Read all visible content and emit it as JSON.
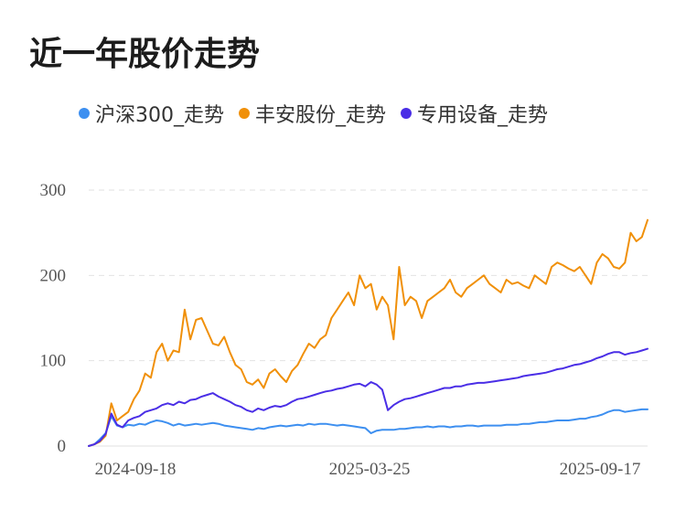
{
  "title": "近一年股价走势",
  "chart_data": {
    "type": "line",
    "title": "近一年股价走势",
    "xlabel": "",
    "ylabel": "",
    "x_tick_labels": [
      "2024-09-18",
      "2025-03-25",
      "2025-09-17"
    ],
    "y_ticks": [
      0,
      100,
      200,
      300
    ],
    "ylim": [
      0,
      300
    ],
    "grid": "horizontal dashed",
    "legend_position": "top",
    "x_points": 100,
    "series": [
      {
        "name": "沪深300_走势",
        "color": "#3d8ff0",
        "values": [
          0,
          2,
          8,
          15,
          35,
          24,
          22,
          25,
          24,
          26,
          25,
          28,
          30,
          29,
          27,
          24,
          26,
          24,
          25,
          26,
          25,
          26,
          27,
          26,
          24,
          23,
          22,
          21,
          20,
          19,
          21,
          20,
          22,
          23,
          24,
          23,
          24,
          25,
          24,
          26,
          25,
          26,
          26,
          25,
          24,
          25,
          24,
          23,
          22,
          21,
          15,
          18,
          19,
          19,
          19,
          20,
          20,
          21,
          22,
          22,
          23,
          22,
          23,
          23,
          22,
          23,
          23,
          24,
          24,
          23,
          24,
          24,
          24,
          24,
          25,
          25,
          25,
          26,
          26,
          27,
          28,
          28,
          29,
          30,
          30,
          30,
          31,
          32,
          32,
          34,
          35,
          37,
          40,
          42,
          42,
          40,
          41,
          42,
          43,
          43
        ]
      },
      {
        "name": "丰安股份_走势",
        "color": "#f0900a",
        "values": [
          0,
          2,
          5,
          12,
          50,
          30,
          35,
          40,
          55,
          65,
          85,
          80,
          110,
          120,
          100,
          112,
          110,
          160,
          125,
          148,
          150,
          135,
          120,
          118,
          128,
          110,
          95,
          90,
          75,
          72,
          78,
          68,
          85,
          90,
          82,
          75,
          88,
          95,
          108,
          120,
          115,
          125,
          130,
          150,
          160,
          170,
          180,
          165,
          200,
          185,
          190,
          160,
          175,
          165,
          125,
          210,
          165,
          175,
          170,
          150,
          170,
          175,
          180,
          185,
          195,
          180,
          175,
          185,
          190,
          195,
          200,
          190,
          185,
          180,
          195,
          190,
          192,
          188,
          185,
          200,
          195,
          190,
          210,
          215,
          212,
          208,
          205,
          210,
          200,
          190,
          215,
          225,
          220,
          210,
          208,
          215,
          250,
          240,
          245,
          265
        ]
      },
      {
        "name": "专用设备_走势",
        "color": "#4a2ee6",
        "values": [
          0,
          2,
          6,
          14,
          38,
          25,
          22,
          30,
          33,
          35,
          40,
          42,
          44,
          48,
          50,
          48,
          52,
          50,
          54,
          55,
          58,
          60,
          62,
          58,
          55,
          52,
          48,
          46,
          42,
          40,
          44,
          42,
          45,
          47,
          46,
          48,
          52,
          55,
          56,
          58,
          60,
          62,
          64,
          65,
          67,
          68,
          70,
          72,
          73,
          70,
          75,
          72,
          66,
          42,
          48,
          52,
          55,
          56,
          58,
          60,
          62,
          64,
          66,
          68,
          68,
          70,
          70,
          72,
          73,
          74,
          74,
          75,
          76,
          77,
          78,
          79,
          80,
          82,
          83,
          84,
          85,
          86,
          88,
          90,
          91,
          93,
          95,
          96,
          98,
          100,
          103,
          105,
          108,
          110,
          110,
          107,
          109,
          110,
          112,
          114
        ]
      }
    ]
  }
}
